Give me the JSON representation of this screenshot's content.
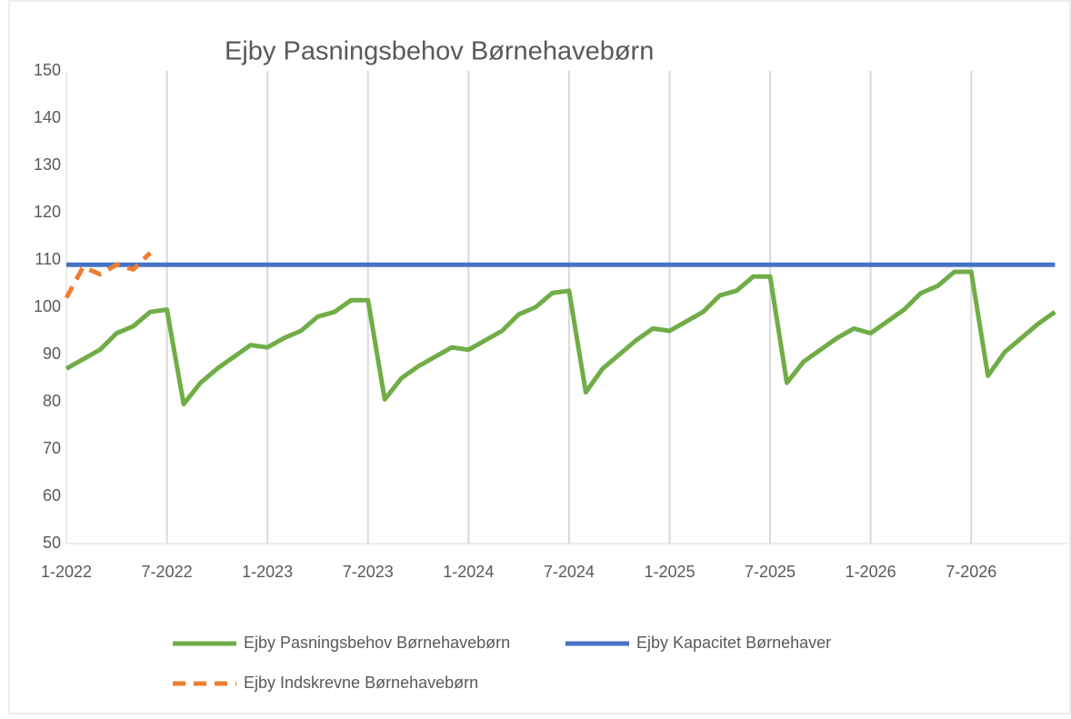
{
  "chart_data": {
    "type": "line",
    "title": "Ejby Pasningsbehov Børnehavebørn",
    "categories": [
      "1-2022",
      null,
      null,
      null,
      null,
      null,
      "7-2022",
      null,
      null,
      null,
      null,
      null,
      "1-2023",
      null,
      null,
      null,
      null,
      null,
      "7-2023",
      null,
      null,
      null,
      null,
      null,
      "1-2024",
      null,
      null,
      null,
      null,
      null,
      "7-2024",
      null,
      null,
      null,
      null,
      null,
      "1-2025",
      null,
      null,
      null,
      null,
      null,
      "7-2025",
      null,
      null,
      null,
      null,
      null,
      "1-2026",
      null,
      null,
      null,
      null,
      null,
      "7-2026",
      null,
      null,
      null,
      null,
      null
    ],
    "series": [
      {
        "name": "Ejby Pasningsbehov Børnehavebørn",
        "color": "#70ad47",
        "dash": false,
        "values": [
          87,
          89,
          91,
          94.5,
          96,
          99,
          99.5,
          79.5,
          84,
          87,
          89.5,
          92,
          91.5,
          93.5,
          95,
          98,
          99,
          101.5,
          101.5,
          80.5,
          85,
          87.5,
          89.5,
          91.5,
          91,
          93,
          95,
          98.5,
          100,
          103,
          103.5,
          82,
          87,
          90,
          93,
          95.5,
          95,
          97,
          99,
          102.5,
          103.5,
          106.5,
          106.5,
          84,
          88.5,
          91,
          93.5,
          95.5,
          94.5,
          97,
          99.5,
          103,
          104.5,
          107.5,
          107.5,
          85.5,
          90.5,
          93.5,
          96.5,
          99
        ]
      },
      {
        "name": "Ejby Kapacitet Børnehaver",
        "color": "#4472c4",
        "dash": false,
        "values": [
          109,
          109,
          109,
          109,
          109,
          109,
          109,
          109,
          109,
          109,
          109,
          109,
          109,
          109,
          109,
          109,
          109,
          109,
          109,
          109,
          109,
          109,
          109,
          109,
          109,
          109,
          109,
          109,
          109,
          109,
          109,
          109,
          109,
          109,
          109,
          109,
          109,
          109,
          109,
          109,
          109,
          109,
          109,
          109,
          109,
          109,
          109,
          109,
          109,
          109,
          109,
          109,
          109,
          109,
          109,
          109,
          109,
          109,
          109,
          109
        ]
      },
      {
        "name": "Ejby Indskrevne Børnehavebørn",
        "color": "#ed7d31",
        "dash": true,
        "values": [
          102,
          108.5,
          107,
          109,
          108,
          111.5,
          null,
          null,
          null,
          null,
          null,
          null,
          null,
          null,
          null,
          null,
          null,
          null,
          null,
          null,
          null,
          null,
          null,
          null,
          null,
          null,
          null,
          null,
          null,
          null,
          null,
          null,
          null,
          null,
          null,
          null,
          null,
          null,
          null,
          null,
          null,
          null,
          null,
          null,
          null,
          null,
          null,
          null,
          null,
          null,
          null,
          null,
          null,
          null,
          null,
          null,
          null,
          null,
          null,
          null
        ]
      }
    ],
    "ylim": [
      50,
      150
    ],
    "yticks": [
      50,
      60,
      70,
      80,
      90,
      100,
      110,
      120,
      130,
      140,
      150
    ],
    "grid": true
  }
}
